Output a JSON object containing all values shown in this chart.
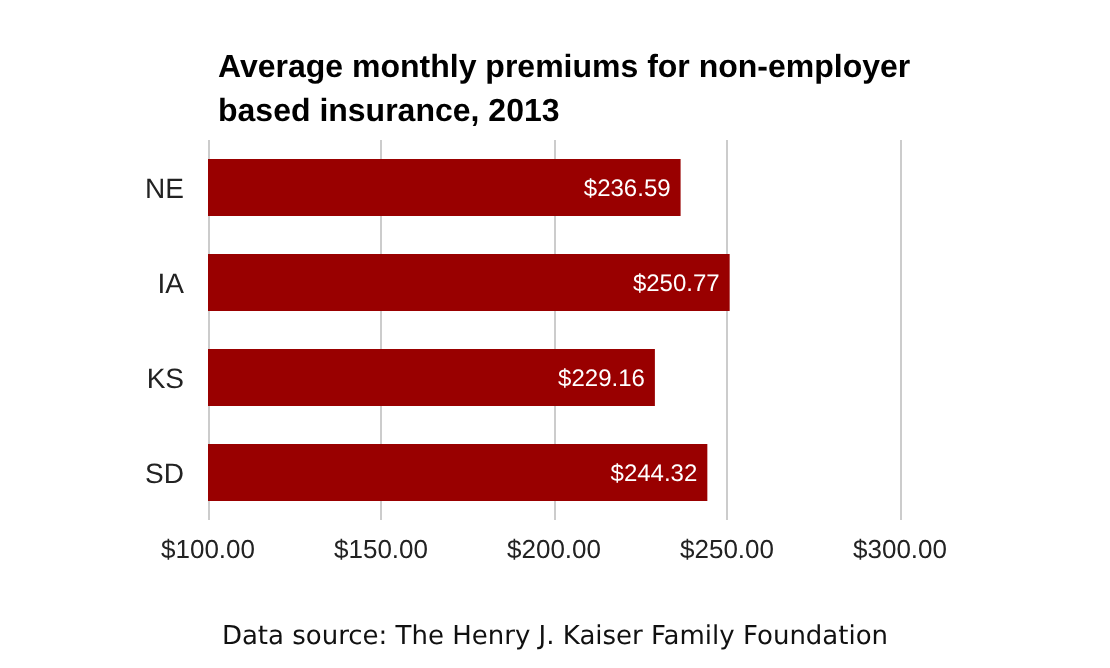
{
  "chart_data": {
    "type": "bar",
    "orientation": "horizontal",
    "title": "Average monthly premiums for non-employer\nbased insurance, 2013",
    "categories": [
      "NE",
      "IA",
      "KS",
      "SD"
    ],
    "values": [
      236.59,
      250.77,
      229.16,
      244.32
    ],
    "value_labels": [
      "$236.59",
      "$250.77",
      "$229.16",
      "$244.32"
    ],
    "color": "#990000",
    "xlim": [
      100,
      300
    ],
    "xticks": [
      {
        "value": 100,
        "label": "$100.00"
      },
      {
        "value": 150,
        "label": "$150.00"
      },
      {
        "value": 200,
        "label": "$200.00"
      },
      {
        "value": 250,
        "label": "$250.00"
      },
      {
        "value": 300,
        "label": "$300.00"
      }
    ],
    "grid": "x",
    "annotations": [
      "Data source: The Henry J. Kaiser Family Foundation"
    ]
  }
}
